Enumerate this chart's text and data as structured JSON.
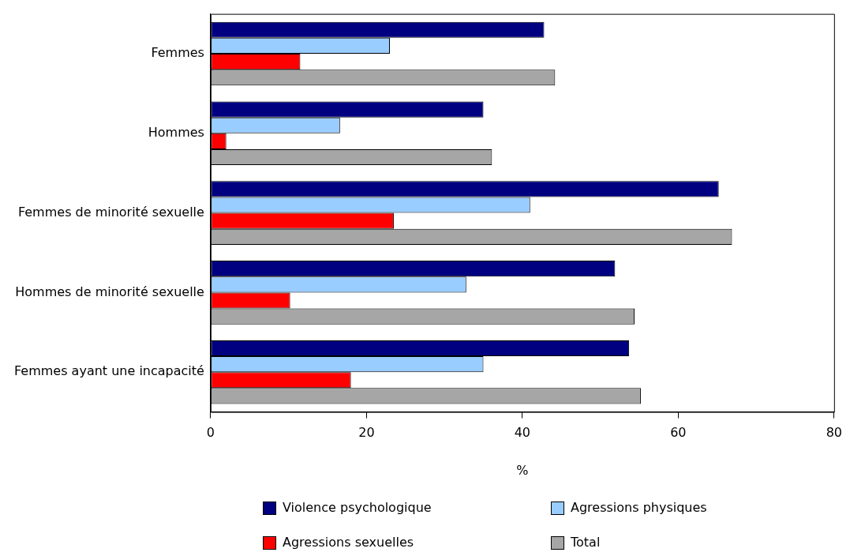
{
  "chart_data": {
    "type": "bar",
    "orientation": "horizontal",
    "xlabel": "%",
    "categories": [
      "Femmes",
      "Hommes",
      "Femmes de minorité sexuelle",
      "Hommes de minorité sexuelle",
      "Femmes ayant une incapacité"
    ],
    "series": [
      {
        "name": "Violence psychologique",
        "color": "#000080",
        "values": [
          42.8,
          35.0,
          65.2,
          51.9,
          53.7
        ]
      },
      {
        "name": "Agressions physiques",
        "color": "#99ccff",
        "values": [
          23.0,
          16.6,
          41.0,
          32.8,
          35.0
        ]
      },
      {
        "name": "Agressions sexuelles",
        "color": "#ff0000",
        "values": [
          11.5,
          2.0,
          23.5,
          10.2,
          18.0
        ]
      },
      {
        "name": "Total",
        "color": "#a6a6a6",
        "values": [
          44.2,
          36.1,
          66.9,
          54.4,
          55.2
        ]
      }
    ],
    "xlim": [
      0,
      80
    ],
    "xticks": [
      0,
      20,
      40,
      60,
      80
    ],
    "grid": false,
    "legend": "bottom"
  }
}
